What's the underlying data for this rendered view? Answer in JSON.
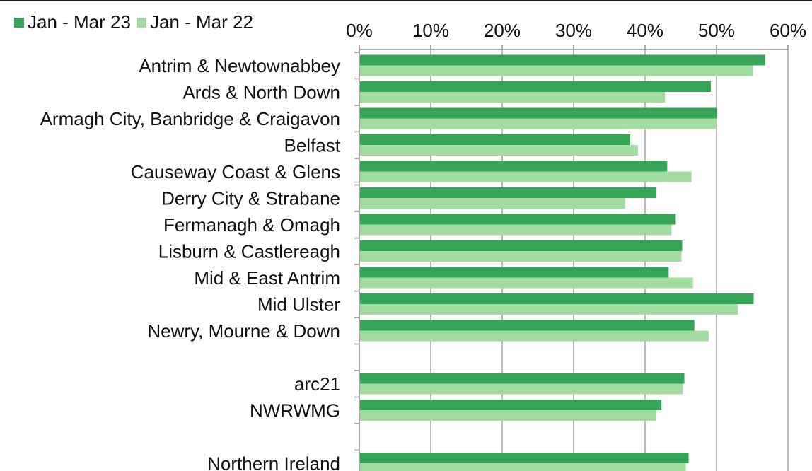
{
  "chart_data": {
    "type": "bar",
    "orientation": "horizontal",
    "categories": [
      "Antrim & Newtownabbey",
      "Ards & North Down",
      "Armagh City, Banbridge & Craigavon",
      "Belfast",
      "Causeway Coast & Glens",
      "Derry City & Strabane",
      "Fermanagh & Omagh",
      "Lisburn & Castlereagh",
      "Mid & East Antrim",
      "Mid Ulster",
      "Newry, Mourne & Down",
      "",
      "arc21",
      "NWRWMG",
      "",
      "Northern Ireland"
    ],
    "series": [
      {
        "name": "Jan - Mar 23",
        "color": "#34a556",
        "values": [
          56.8,
          49.2,
          50.1,
          37.9,
          43.1,
          41.6,
          44.3,
          45.2,
          43.3,
          55.2,
          46.9,
          null,
          45.5,
          42.3,
          null,
          46.1
        ]
      },
      {
        "name": "Jan - Mar 22",
        "color": "#a3dca0",
        "values": [
          55.1,
          42.8,
          50.0,
          39.0,
          46.5,
          37.2,
          43.7,
          45.1,
          46.7,
          53.0,
          48.9,
          null,
          45.3,
          41.6,
          null,
          45.7
        ]
      }
    ],
    "xlim": [
      0,
      60
    ],
    "x_tick_values": [
      0,
      10,
      20,
      30,
      40,
      50,
      60
    ],
    "x_tick_labels": [
      "0%",
      "10%",
      "20%",
      "30%",
      "40%",
      "50%",
      "60%"
    ],
    "x_axis_position": "top",
    "grid": "vertical",
    "legend_position": "top-left",
    "title": "",
    "xlabel": "",
    "ylabel": ""
  }
}
